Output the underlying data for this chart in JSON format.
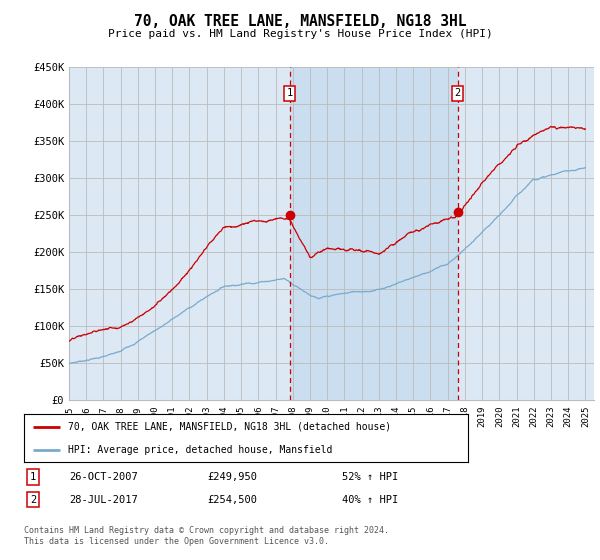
{
  "title": "70, OAK TREE LANE, MANSFIELD, NG18 3HL",
  "subtitle": "Price paid vs. HM Land Registry's House Price Index (HPI)",
  "ylabel_ticks": [
    "£0",
    "£50K",
    "£100K",
    "£150K",
    "£200K",
    "£250K",
    "£300K",
    "£350K",
    "£400K",
    "£450K"
  ],
  "ytick_values": [
    0,
    50000,
    100000,
    150000,
    200000,
    250000,
    300000,
    350000,
    400000,
    450000
  ],
  "ylim": [
    0,
    450000
  ],
  "sale1_date": "26-OCT-2007",
  "sale1_price": 249950,
  "sale1_hpi_pct": "52%",
  "sale2_date": "28-JUL-2017",
  "sale2_price": 254500,
  "sale2_hpi_pct": "40%",
  "legend1": "70, OAK TREE LANE, MANSFIELD, NG18 3HL (detached house)",
  "legend2": "HPI: Average price, detached house, Mansfield",
  "footer": "Contains HM Land Registry data © Crown copyright and database right 2024.\nThis data is licensed under the Open Government Licence v3.0.",
  "bg_color": "#dce9f5",
  "shade_color": "#c8ddf0",
  "line_color_red": "#cc0000",
  "line_color_blue": "#7aaacc",
  "vline_color": "#cc0000",
  "grid_color": "#bbbbbb",
  "sale1_x": 2007.82,
  "sale2_x": 2017.57,
  "xmin": 1995,
  "xmax": 2025
}
